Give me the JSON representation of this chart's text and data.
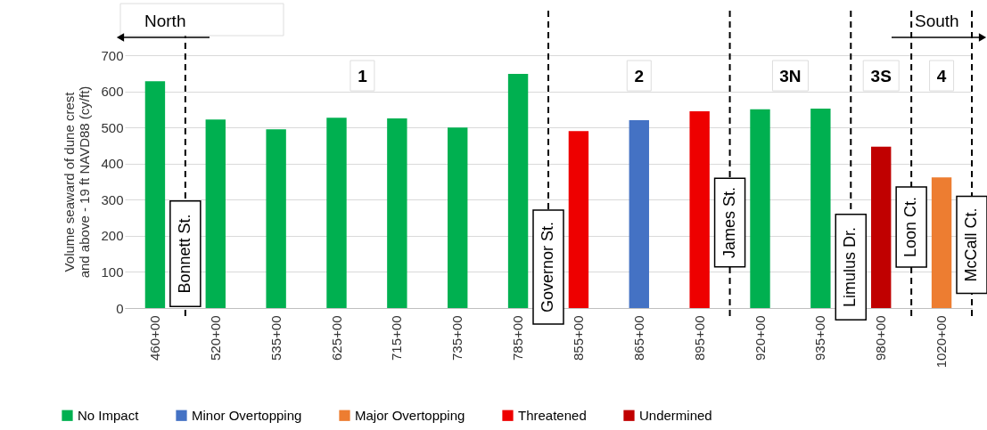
{
  "chart_data": {
    "type": "bar",
    "ylabel": "Volume seaward of dune crest and above - 19 ft NAVD88 (cy/ft)",
    "categories": [
      "460+00",
      "520+00",
      "535+00",
      "625+00",
      "715+00",
      "735+00",
      "785+00",
      "855+00",
      "865+00",
      "895+00",
      "920+00",
      "935+00",
      "980+00",
      "1020+00"
    ],
    "series": [
      {
        "name": "No Impact",
        "color": "#00b050",
        "values": [
          628,
          522,
          495,
          527,
          525,
          500,
          648,
          null,
          null,
          null,
          550,
          552,
          null,
          null
        ]
      },
      {
        "name": "Minor Overtopping",
        "color": "#4472c4",
        "values": [
          null,
          null,
          null,
          null,
          null,
          null,
          null,
          null,
          520,
          null,
          null,
          null,
          null,
          null
        ]
      },
      {
        "name": "Major Overtopping",
        "color": "#ed7d31",
        "values": [
          null,
          null,
          null,
          null,
          null,
          null,
          null,
          null,
          null,
          null,
          null,
          null,
          null,
          362
        ]
      },
      {
        "name": "Threatened",
        "color": "#ee0000",
        "values": [
          null,
          null,
          null,
          null,
          null,
          null,
          null,
          490,
          null,
          545,
          null,
          null,
          null,
          null
        ]
      },
      {
        "name": "Undermined",
        "color": "#c00000",
        "values": [
          null,
          null,
          null,
          null,
          null,
          null,
          null,
          null,
          null,
          null,
          null,
          null,
          447,
          null
        ]
      }
    ],
    "ylim": [
      0,
      700
    ],
    "yticks": [
      0,
      100,
      200,
      300,
      400,
      500,
      600,
      700
    ],
    "grid": "y",
    "legend": "bottom",
    "annotations": [
      "North",
      "South",
      "1",
      "2",
      "3N",
      "3S",
      "4",
      "Bonnett St.",
      "Governor St.",
      "James St.",
      "Limulus Dr.",
      "Loon Ct.",
      "McCall Ct."
    ]
  }
}
